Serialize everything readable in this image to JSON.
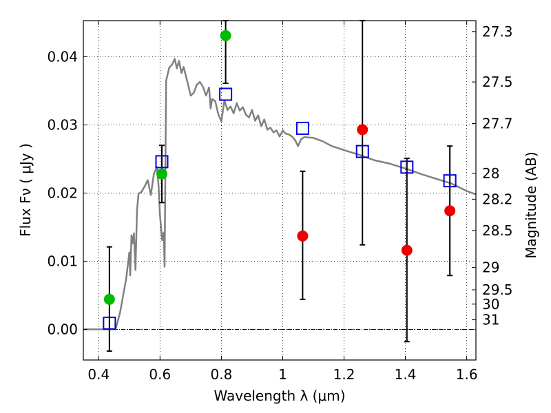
{
  "chart_data": {
    "type": "scatter",
    "xlabel": "Wavelength  λ (μm)",
    "ylabel": "Flux  Fν  ( μJy )",
    "y2label": "Magnitude (AB)",
    "xlim": [
      0.35,
      1.63
    ],
    "ylim": [
      -0.0045,
      0.0453
    ],
    "grid": true,
    "xticks": [
      0.4,
      0.6,
      0.8,
      1.0,
      1.2,
      1.4,
      1.6
    ],
    "xtick_labels": [
      "0.4",
      "0.6",
      "0.8",
      "1",
      "1.2",
      "1.4",
      "1.6"
    ],
    "yticks": [
      0.0,
      0.01,
      0.02,
      0.03,
      0.04
    ],
    "ytick_labels": [
      "0.00",
      "0.01",
      "0.02",
      "0.03",
      "0.04"
    ],
    "magnitude_ticks": [
      {
        "label": "27.3",
        "flux": 0.0437
      },
      {
        "label": "27.5",
        "flux": 0.0363
      },
      {
        "label": "27.7",
        "flux": 0.0302
      },
      {
        "label": "28",
        "flux": 0.0229
      },
      {
        "label": "28.2",
        "flux": 0.0191
      },
      {
        "label": "28.5",
        "flux": 0.0145
      },
      {
        "label": "29",
        "flux": 0.0091
      },
      {
        "label": "29.5",
        "flux": 0.0058
      },
      {
        "label": "30",
        "flux": 0.0037
      },
      {
        "label": "31",
        "flux": 0.0014
      }
    ],
    "series": [
      {
        "marker": "circle",
        "color": "#00bb00",
        "points": [
          {
            "x": 0.435,
            "y": 0.0044,
            "err_low": null,
            "err_high": null
          },
          {
            "x": 0.606,
            "y": 0.0228,
            "err_low": null,
            "err_high": null
          },
          {
            "x": 0.814,
            "y": 0.0431,
            "err_low": null,
            "err_high": null
          }
        ]
      },
      {
        "marker": "circle",
        "color": "#ee0000",
        "points": [
          {
            "x": 1.065,
            "y": 0.0137,
            "err_low": null,
            "err_high": null
          },
          {
            "x": 1.26,
            "y": 0.0293,
            "err_low": null,
            "err_high": null
          },
          {
            "x": 1.405,
            "y": 0.0116,
            "err_low": null,
            "err_high": null
          },
          {
            "x": 1.545,
            "y": 0.0174,
            "err_low": null,
            "err_high": null
          }
        ]
      },
      {
        "marker": "open-square",
        "color": "#0000dd",
        "points": [
          {
            "x": 0.435,
            "y": 0.0009,
            "err_low": -0.0032,
            "err_high": 0.0121
          },
          {
            "x": 0.606,
            "y": 0.0246,
            "err_low": 0.0186,
            "err_high": 0.027
          },
          {
            "x": 0.814,
            "y": 0.0345,
            "err_low": 0.0361,
            "err_high": 0.0453
          },
          {
            "x": 1.065,
            "y": 0.0295,
            "err_low": 0.0044,
            "err_high": 0.0232
          },
          {
            "x": 1.26,
            "y": 0.0261,
            "err_low": 0.0124,
            "err_high": 0.0453
          },
          {
            "x": 1.405,
            "y": 0.0238,
            "err_low": -0.0018,
            "err_high": 0.0251
          },
          {
            "x": 1.545,
            "y": 0.0218,
            "err_low": 0.0079,
            "err_high": 0.0269
          }
        ]
      },
      {
        "marker": "line",
        "color": "#808080",
        "points": [
          {
            "x": 0.35,
            "y": 0.0
          },
          {
            "x": 0.455,
            "y": 0.0
          },
          {
            "x": 0.47,
            "y": 0.0025
          },
          {
            "x": 0.49,
            "y": 0.0075
          },
          {
            "x": 0.5,
            "y": 0.0113
          },
          {
            "x": 0.503,
            "y": 0.0079
          },
          {
            "x": 0.507,
            "y": 0.0138
          },
          {
            "x": 0.51,
            "y": 0.0126
          },
          {
            "x": 0.515,
            "y": 0.0141
          },
          {
            "x": 0.52,
            "y": 0.0087
          },
          {
            "x": 0.525,
            "y": 0.0175
          },
          {
            "x": 0.53,
            "y": 0.0199
          },
          {
            "x": 0.54,
            "y": 0.0202
          },
          {
            "x": 0.55,
            "y": 0.021
          },
          {
            "x": 0.56,
            "y": 0.0219
          },
          {
            "x": 0.57,
            "y": 0.0197
          },
          {
            "x": 0.58,
            "y": 0.0228
          },
          {
            "x": 0.59,
            "y": 0.0238
          },
          {
            "x": 0.595,
            "y": 0.0212
          },
          {
            "x": 0.6,
            "y": 0.0167
          },
          {
            "x": 0.607,
            "y": 0.0131
          },
          {
            "x": 0.612,
            "y": 0.0142
          },
          {
            "x": 0.615,
            "y": 0.0092
          },
          {
            "x": 0.62,
            "y": 0.0365
          },
          {
            "x": 0.63,
            "y": 0.0384
          },
          {
            "x": 0.64,
            "y": 0.0389
          },
          {
            "x": 0.648,
            "y": 0.0397
          },
          {
            "x": 0.655,
            "y": 0.0383
          },
          {
            "x": 0.662,
            "y": 0.0394
          },
          {
            "x": 0.67,
            "y": 0.0376
          },
          {
            "x": 0.677,
            "y": 0.0385
          },
          {
            "x": 0.69,
            "y": 0.0362
          },
          {
            "x": 0.7,
            "y": 0.0343
          },
          {
            "x": 0.71,
            "y": 0.0347
          },
          {
            "x": 0.72,
            "y": 0.0359
          },
          {
            "x": 0.73,
            "y": 0.0363
          },
          {
            "x": 0.74,
            "y": 0.0356
          },
          {
            "x": 0.75,
            "y": 0.0343
          },
          {
            "x": 0.76,
            "y": 0.0355
          },
          {
            "x": 0.765,
            "y": 0.0324
          },
          {
            "x": 0.77,
            "y": 0.0338
          },
          {
            "x": 0.78,
            "y": 0.0335
          },
          {
            "x": 0.79,
            "y": 0.0316
          },
          {
            "x": 0.8,
            "y": 0.0305
          },
          {
            "x": 0.81,
            "y": 0.0336
          },
          {
            "x": 0.82,
            "y": 0.0322
          },
          {
            "x": 0.83,
            "y": 0.0327
          },
          {
            "x": 0.84,
            "y": 0.0317
          },
          {
            "x": 0.85,
            "y": 0.0332
          },
          {
            "x": 0.86,
            "y": 0.0321
          },
          {
            "x": 0.87,
            "y": 0.0326
          },
          {
            "x": 0.88,
            "y": 0.0315
          },
          {
            "x": 0.89,
            "y": 0.0311
          },
          {
            "x": 0.9,
            "y": 0.0322
          },
          {
            "x": 0.91,
            "y": 0.0306
          },
          {
            "x": 0.92,
            "y": 0.0314
          },
          {
            "x": 0.93,
            "y": 0.0298
          },
          {
            "x": 0.94,
            "y": 0.0308
          },
          {
            "x": 0.95,
            "y": 0.0293
          },
          {
            "x": 0.96,
            "y": 0.0296
          },
          {
            "x": 0.97,
            "y": 0.0289
          },
          {
            "x": 0.98,
            "y": 0.0292
          },
          {
            "x": 0.99,
            "y": 0.0283
          },
          {
            "x": 1.0,
            "y": 0.0292
          },
          {
            "x": 1.01,
            "y": 0.0287
          },
          {
            "x": 1.02,
            "y": 0.0286
          },
          {
            "x": 1.03,
            "y": 0.0283
          },
          {
            "x": 1.04,
            "y": 0.0278
          },
          {
            "x": 1.05,
            "y": 0.0269
          },
          {
            "x": 1.06,
            "y": 0.0279
          },
          {
            "x": 1.07,
            "y": 0.0282
          },
          {
            "x": 1.1,
            "y": 0.0281
          },
          {
            "x": 1.13,
            "y": 0.0276
          },
          {
            "x": 1.16,
            "y": 0.0269
          },
          {
            "x": 1.2,
            "y": 0.0263
          },
          {
            "x": 1.25,
            "y": 0.0256
          },
          {
            "x": 1.3,
            "y": 0.0248
          },
          {
            "x": 1.35,
            "y": 0.0243
          },
          {
            "x": 1.4,
            "y": 0.0236
          },
          {
            "x": 1.45,
            "y": 0.0228
          },
          {
            "x": 1.5,
            "y": 0.0221
          },
          {
            "x": 1.55,
            "y": 0.0214
          },
          {
            "x": 1.6,
            "y": 0.0203
          },
          {
            "x": 1.63,
            "y": 0.0198
          }
        ]
      }
    ]
  }
}
